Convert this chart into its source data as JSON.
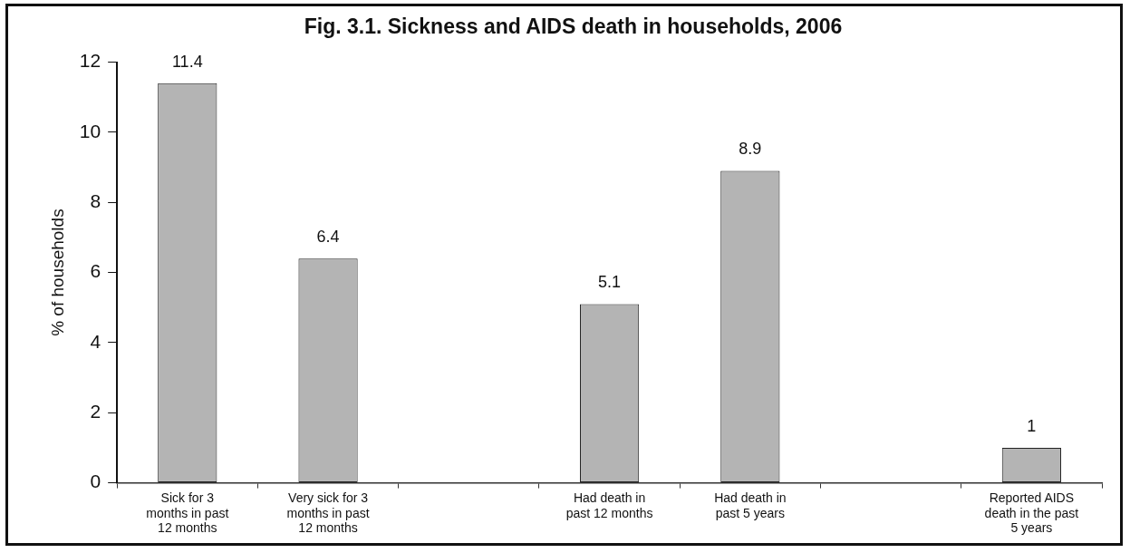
{
  "chart_data": {
    "type": "bar",
    "title": "Fig. 3.1. Sickness and AIDS death in households, 2006",
    "ylabel": "% of households",
    "categories": [
      "Sick for 3 months in past 12 months",
      "Very sick for 3 months in past 12 months",
      null,
      "Had death in past 12 months",
      "Had death in past 5 years",
      null,
      "Reported AIDS death in the past 5 years"
    ],
    "values": [
      11.4,
      6.4,
      null,
      5.1,
      8.9,
      null,
      1
    ],
    "color": "#b4b4b4",
    "ylim": [
      0,
      12
    ],
    "yticks": [
      0,
      2,
      4,
      6,
      8,
      10,
      12
    ],
    "data_labels": true,
    "grid": false,
    "legend": false
  }
}
